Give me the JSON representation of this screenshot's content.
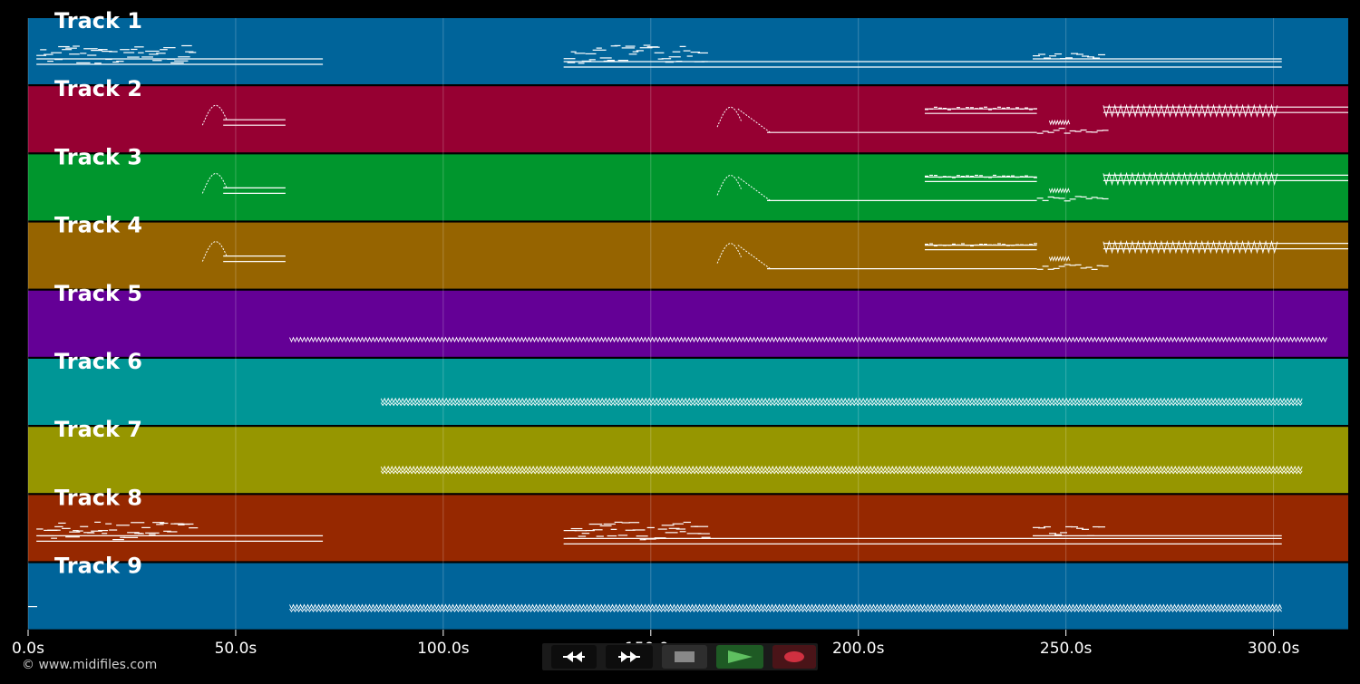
{
  "tracks": [
    {
      "label": "Track 1",
      "color": "#00649a",
      "pattern": "melody"
    },
    {
      "label": "Track 2",
      "color": "#960032",
      "pattern": "lead"
    },
    {
      "label": "Track 3",
      "color": "#00962d",
      "pattern": "lead"
    },
    {
      "label": "Track 4",
      "color": "#966400",
      "pattern": "lead"
    },
    {
      "label": "Track 5",
      "color": "#640096",
      "pattern": "dense-a"
    },
    {
      "label": "Track 6",
      "color": "#009696",
      "pattern": "dense-b"
    },
    {
      "label": "Track 7",
      "color": "#969600",
      "pattern": "dense-b"
    },
    {
      "label": "Track 8",
      "color": "#962800",
      "pattern": "melody"
    },
    {
      "label": "Track 9",
      "color": "#00649a",
      "pattern": "dense-c"
    }
  ],
  "time_axis": {
    "ticks": [
      "0.0s",
      "50.0s",
      "100.0s",
      "150.0s",
      "200.0s",
      "250.0s",
      "300.0s"
    ],
    "tick_seconds": [
      0,
      50,
      100,
      150,
      200,
      250,
      300
    ],
    "max_seconds": 318
  },
  "footer": {
    "copyright": "© www.midifiles.com"
  },
  "transport": {
    "rewind": {
      "icon": "rewind-icon",
      "color": "#ffffff"
    },
    "fast_forward": {
      "icon": "fast-forward-icon",
      "color": "#ffffff"
    },
    "stop": {
      "icon": "stop-icon",
      "color": "#888888"
    },
    "play": {
      "icon": "play-icon",
      "color": "#5fc060"
    },
    "record": {
      "icon": "record-icon",
      "color": "#d03040"
    }
  }
}
